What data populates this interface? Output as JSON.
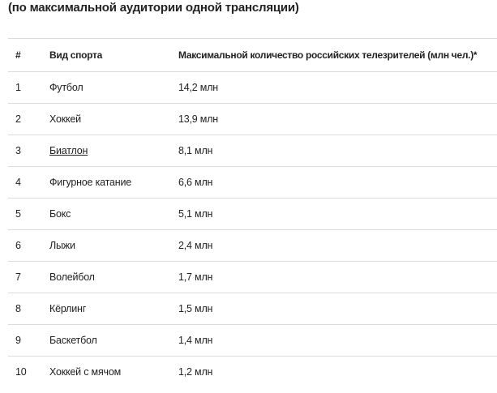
{
  "heading": "(по максимальной аудитории одной трансляции)",
  "table": {
    "header": [
      "#",
      "Вид спорта",
      "Максимальной количество российских телезрителей (млн чел.)*"
    ],
    "rows": [
      [
        "1",
        "Футбол",
        "14,2 млн"
      ],
      [
        "2",
        "Хоккей",
        "13,9 млн"
      ],
      [
        "3",
        "Биатлон",
        "8,1 млн"
      ],
      [
        "4",
        "Фигурное катание",
        "6,6 млн"
      ],
      [
        "5",
        "Бокс",
        "5,1 млн"
      ],
      [
        "6",
        "Лыжи",
        "2,4 млн"
      ],
      [
        "7",
        "Волейбол",
        "1,7 млн"
      ],
      [
        "8",
        "Кёрлинг",
        "1,5 млн"
      ],
      [
        "9",
        "Баскетбол",
        "1,4 млн"
      ],
      [
        "10",
        "Хоккей с мячом",
        "1,2 млн"
      ]
    ]
  }
}
